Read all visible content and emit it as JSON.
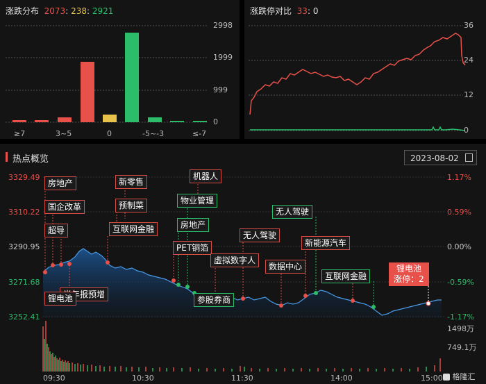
{
  "dist": {
    "title": "涨跌分布",
    "up": "2073",
    "flat": "238",
    "down": "2921",
    "sep": ":",
    "yticks": [
      "2998",
      "1999",
      "999",
      "0"
    ],
    "xlabels": [
      "≥7",
      "3~5",
      "0",
      "-5~-3",
      "≤-7"
    ],
    "colors": {
      "up": "#e8504a",
      "flat": "#e8c34a",
      "down": "#2bbd6a"
    }
  },
  "limit": {
    "title": "涨跌停对比",
    "up": "33",
    "down": "0",
    "sep": ":",
    "yticks": [
      "36",
      "24",
      "12",
      "0"
    ]
  },
  "hot": {
    "title": "热点概览",
    "date": "2023-08-02",
    "prices": [
      "3329.49",
      "3310.22",
      "3290.95",
      "3271.68",
      "3252.41"
    ],
    "pcts": [
      "1.17%",
      "0.59%",
      "0.00%",
      "-0.59%",
      "-1.17%"
    ],
    "vol_ticks": [
      "1498万",
      "749.1万"
    ],
    "times": [
      "09:30",
      "10:30",
      "11:30",
      "14:00",
      "15:00"
    ],
    "tags": {
      "t1": "房地产",
      "t2": "国企改革",
      "t3": "超导",
      "t4": "新零售",
      "t5": "预制菜",
      "t6": "互联网金融",
      "t7": "机器人",
      "t8": "物业管理",
      "t9": "房地产",
      "t10": "PET铜箔",
      "t11": "虚拟数字人",
      "t12": "无人驾驶",
      "t13": "数据中心",
      "t14": "无人驾驶",
      "t15": "新能源汽车",
      "t16": "互联网金融",
      "t17": "参股券商",
      "t18": "半年报预增",
      "t19": "锂电池"
    },
    "tooltip_line1": "锂电池",
    "tooltip_line2": "涨停：2"
  },
  "logo": "格隆汇"
}
